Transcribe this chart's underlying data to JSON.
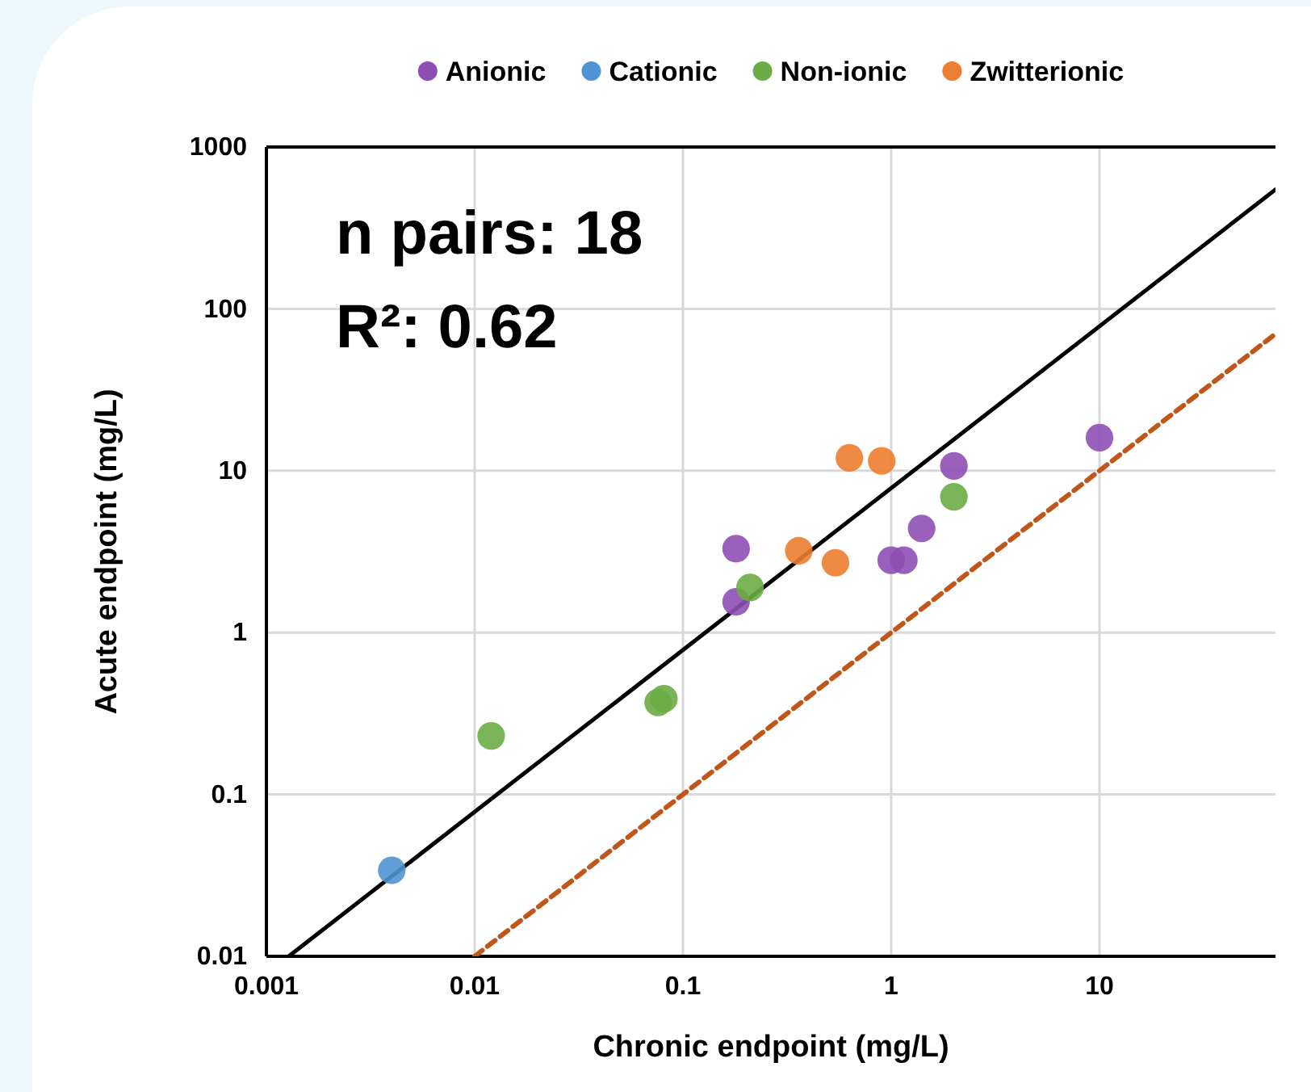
{
  "chart_data": {
    "type": "scatter",
    "xlabel": "Chronic endpoint (mg/L)",
    "ylabel": "Acute endpoint (mg/L)",
    "log": "xy",
    "xlim": [
      0.001,
      70
    ],
    "ylim": [
      0.01,
      1000
    ],
    "xticks": [
      0.001,
      0.01,
      0.1,
      1,
      10
    ],
    "yticks": [
      0.01,
      0.1,
      1,
      10,
      100,
      1000
    ],
    "grid": true,
    "legend": "top",
    "annotations": [
      "n pairs: 18",
      "R²: 0.62"
    ],
    "series": [
      {
        "name": "Anionic",
        "color": "#8e4fb5",
        "marker": "circle",
        "x": [
          0.18,
          0.18,
          1.0,
          1.15,
          1.4,
          2.0,
          10
        ],
        "values": [
          3.3,
          1.55,
          2.8,
          2.8,
          4.4,
          10.7,
          16
        ]
      },
      {
        "name": "Cationic",
        "color": "#4f93d4",
        "marker": "circle",
        "x": [
          0.004
        ],
        "values": [
          0.034
        ]
      },
      {
        "name": "Non-ionic",
        "color": "#6aad45",
        "marker": "circle",
        "x": [
          0.012,
          0.076,
          0.081,
          0.21,
          2.0
        ],
        "values": [
          0.23,
          0.37,
          0.39,
          1.9,
          6.9
        ]
      },
      {
        "name": "Zwitterionic",
        "color": "#ed7d31",
        "marker": "circle",
        "x": [
          0.36,
          0.54,
          0.63,
          0.9
        ],
        "values": [
          3.2,
          2.7,
          12,
          11.5
        ]
      },
      {
        "type": "line",
        "color": "#000000",
        "line_style": "solid",
        "x": [
          0.00128,
          70
        ],
        "values": [
          0.01,
          546
        ]
      },
      {
        "type": "line",
        "color": "#c0561a",
        "line_style": "dashed",
        "x": [
          0.01,
          70
        ],
        "values": [
          0.01,
          70
        ]
      }
    ]
  }
}
